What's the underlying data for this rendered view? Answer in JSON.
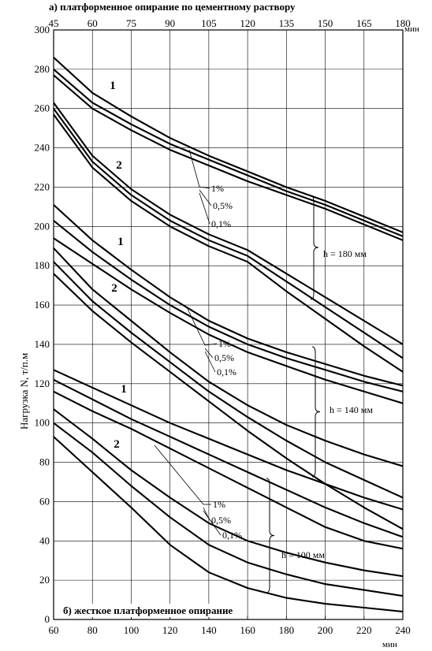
{
  "chart_data": {
    "type": "line",
    "title_top": "а) платформенное опирание по цементному раствору",
    "title_bottom": "б) жесткое платформенное опирание",
    "ylabel": "Нагрузка N, т/п.м",
    "x_top_unit": "мин",
    "x_bottom_unit": "мин",
    "y_ticks": [
      0,
      20,
      40,
      60,
      80,
      100,
      120,
      140,
      160,
      180,
      200,
      220,
      240,
      260,
      280,
      300
    ],
    "x_top_ticks": [
      "45",
      "60",
      "75",
      "90",
      "105",
      "120",
      "135",
      "150",
      "165",
      "180"
    ],
    "x_bottom_ticks": [
      "60",
      "80",
      "100",
      "120",
      "140",
      "160",
      "180",
      "200",
      "220",
      "240"
    ],
    "xlim_top": [
      45,
      180
    ],
    "xlim_bottom": [
      60,
      240
    ],
    "ylim": [
      0,
      300
    ],
    "grid": true,
    "groups": [
      {
        "axis": "top",
        "thickness_label": "h = 180 мм",
        "probability_labels": [
          "1%",
          "0,5%",
          "0,1%"
        ],
        "group_labels": [
          "1",
          "2"
        ],
        "series": [
          {
            "curve": "1",
            "x": [
              45,
              60,
              75,
              90,
              105,
              120,
              135,
              150,
              165,
              180
            ],
            "y": [
              286,
              268,
              256,
              245,
              236,
              228,
              220,
              213,
              205,
              197
            ]
          },
          {
            "curve": "1",
            "x": [
              45,
              60,
              75,
              90,
              105,
              120,
              135,
              150,
              165,
              180
            ],
            "y": [
              280,
              263,
              252,
              242,
              234,
              226,
              218,
              211,
              203,
              195
            ]
          },
          {
            "curve": "1",
            "x": [
              45,
              60,
              75,
              90,
              105,
              120,
              135,
              150,
              165,
              180
            ],
            "y": [
              277,
              260,
              249,
              239,
              231,
              223,
              216,
              209,
              201,
              193
            ]
          },
          {
            "curve": "2",
            "x": [
              45,
              60,
              75,
              90,
              105,
              120,
              135,
              150,
              165,
              180
            ],
            "y": [
              263,
              236,
              219,
              206,
              196,
              188,
              176,
              164,
              152,
              140
            ]
          },
          {
            "curve": "2",
            "x": [
              45,
              60,
              75,
              90,
              105,
              120,
              135,
              150,
              165,
              180
            ],
            "y": [
              260,
              233,
              216,
              203,
              193,
              185,
              172,
              159,
              146,
              133
            ]
          },
          {
            "curve": "2",
            "x": [
              45,
              60,
              75,
              90,
              105,
              120,
              135,
              150,
              165,
              180
            ],
            "y": [
              257,
              230,
              213,
              200,
              190,
              182,
              167,
              153,
              139,
              126
            ]
          }
        ]
      },
      {
        "axis": "top",
        "thickness_label": "h = 140 мм",
        "probability_labels": [
          "1%",
          "0,5%",
          "0,1%"
        ],
        "group_labels": [
          "1",
          "2"
        ],
        "series": [
          {
            "curve": "1",
            "x": [
              45,
              60,
              75,
              90,
              105,
              120,
              135,
              150,
              165,
              180
            ],
            "y": [
              211,
              193,
              178,
              164,
              152,
              143,
              136,
              130,
              124,
              119
            ]
          },
          {
            "curve": "1",
            "x": [
              45,
              60,
              75,
              90,
              105,
              120,
              135,
              150,
              165,
              180
            ],
            "y": [
              203,
              187,
              173,
              160,
              149,
              140,
              133,
              127,
              121,
              116
            ]
          },
          {
            "curve": "1",
            "x": [
              45,
              60,
              75,
              90,
              105,
              120,
              135,
              150,
              165,
              180
            ],
            "y": [
              194,
              181,
              168,
              156,
              145,
              136,
              129,
              122,
              116,
              110
            ]
          },
          {
            "curve": "2",
            "x": [
              45,
              60,
              75,
              90,
              105,
              120,
              135,
              150,
              165,
              180
            ],
            "y": [
              189,
              168,
              152,
              136,
              121,
              109,
              99,
              91,
              84,
              78
            ]
          },
          {
            "curve": "2",
            "x": [
              45,
              60,
              75,
              90,
              105,
              120,
              135,
              150,
              165,
              180
            ],
            "y": [
              182,
              162,
              146,
              131,
              116,
              103,
              91,
              80,
              71,
              62
            ]
          },
          {
            "curve": "2",
            "x": [
              45,
              60,
              75,
              90,
              105,
              120,
              135,
              150,
              165,
              180
            ],
            "y": [
              176,
              157,
              141,
              126,
              111,
              96,
              82,
              69,
              57,
              46
            ]
          }
        ]
      },
      {
        "axis": "bottom",
        "thickness_label": "h = 100 мм",
        "probability_labels": [
          "1%",
          "0,5%",
          "0,1%"
        ],
        "group_labels": [
          "1",
          "2"
        ],
        "series": [
          {
            "curve": "1",
            "x": [
              60,
              80,
              100,
              120,
              140,
              160,
              180,
              200,
              220,
              240
            ],
            "y": [
              127,
              118,
              109,
              100,
              92,
              84,
              76,
              69,
              62,
              56
            ]
          },
          {
            "curve": "1",
            "x": [
              60,
              80,
              100,
              120,
              140,
              160,
              180,
              200,
              220,
              240
            ],
            "y": [
              122,
              112,
              102,
              93,
              84,
              75,
              66,
              57,
              49,
              42
            ]
          },
          {
            "curve": "1",
            "x": [
              60,
              80,
              100,
              120,
              140,
              160,
              180,
              200,
              220,
              240
            ],
            "y": [
              116,
              106,
              97,
              87,
              77,
              67,
              57,
              47,
              40,
              36
            ]
          },
          {
            "curve": "2",
            "x": [
              60,
              80,
              100,
              120,
              140,
              160,
              180,
              200,
              220,
              240
            ],
            "y": [
              107,
              92,
              76,
              62,
              49,
              40,
              34,
              29,
              25,
              22
            ]
          },
          {
            "curve": "2",
            "x": [
              60,
              80,
              100,
              120,
              140,
              160,
              180,
              200,
              220,
              240
            ],
            "y": [
              100,
              85,
              68,
              52,
              38,
              29,
              23,
              18,
              15,
              12
            ]
          },
          {
            "curve": "2",
            "x": [
              60,
              80,
              100,
              120,
              140,
              160,
              180,
              200,
              220,
              240
            ],
            "y": [
              93,
              75,
              57,
              38,
              24,
              16,
              11,
              8,
              6,
              4
            ]
          }
        ]
      }
    ]
  }
}
